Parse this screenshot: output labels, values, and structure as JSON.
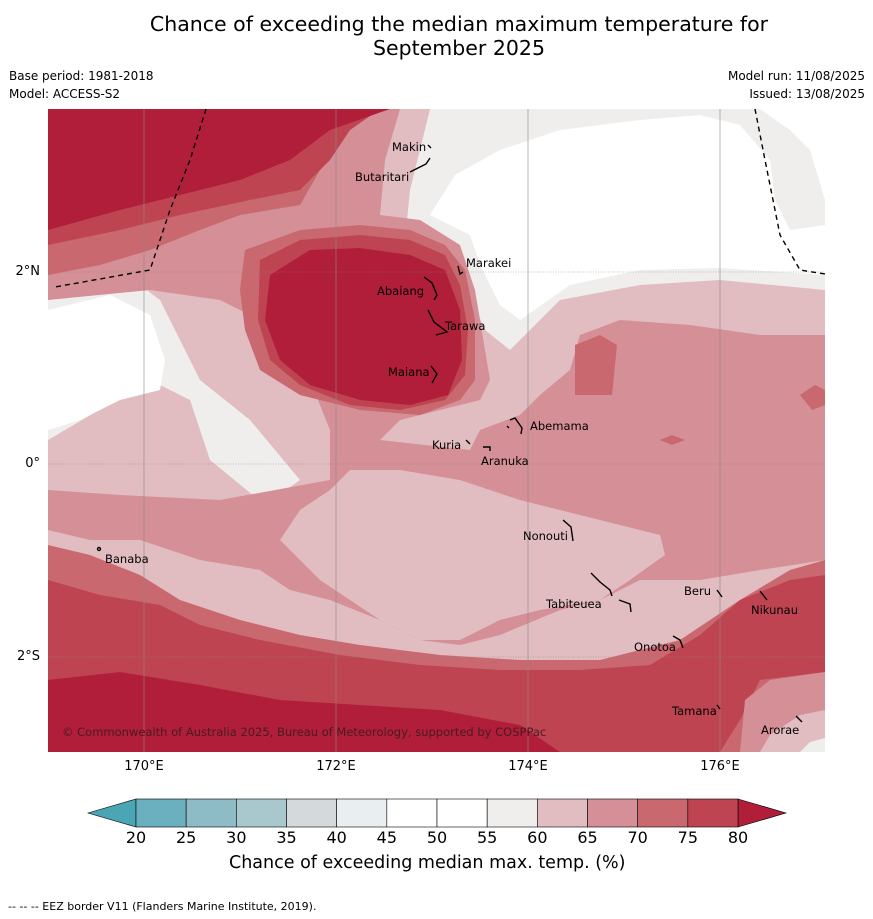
{
  "title_line1": "Chance of exceeding the median maximum temperature for",
  "title_line2": "September 2025",
  "meta_left": {
    "base_period": "Base period: 1981-2018",
    "model": "Model: ACCESS-S2"
  },
  "meta_right": {
    "model_run": "Model run: 11/08/2025",
    "issued": "Issued: 13/08/2025"
  },
  "lon_labels": [
    "170°E",
    "172°E",
    "174°E",
    "176°E"
  ],
  "lat_labels": [
    "2°N",
    "0°",
    "2°S"
  ],
  "places": [
    "Makin",
    "Butaritari",
    "Marakei",
    "Abaiang",
    "Tarawa",
    "Maiana",
    "Abemama",
    "Kuria",
    "Aranuka",
    "Nonouti",
    "Banaba",
    "Tabiteuea",
    "Beru",
    "Nikunau",
    "Onotoa",
    "Tamana",
    "Arorae"
  ],
  "copyright": "© Commonwealth of Australia 2025, Bureau of Meteorology, supported by COSPPac",
  "colorbar": {
    "ticks": [
      "20",
      "25",
      "30",
      "35",
      "40",
      "45",
      "50",
      "55",
      "60",
      "65",
      "70",
      "75",
      "80"
    ],
    "colors": [
      "#6ab0be",
      "#8dbbc6",
      "#a8c8cd",
      "#d4d9db",
      "#e9eef0",
      "#ffffff",
      "#ffffff",
      "#efeeed",
      "#e1bcc0",
      "#d58f96",
      "#c9686f",
      "#bf4452"
    ],
    "under_color": "#4aa6b5",
    "over_color": "#b01e3a",
    "label": "Chance of exceeding median max. temp. (%)"
  },
  "footer": "--  --  -- EEZ border V11 (Flanders Marine Institute, 2019)."
}
